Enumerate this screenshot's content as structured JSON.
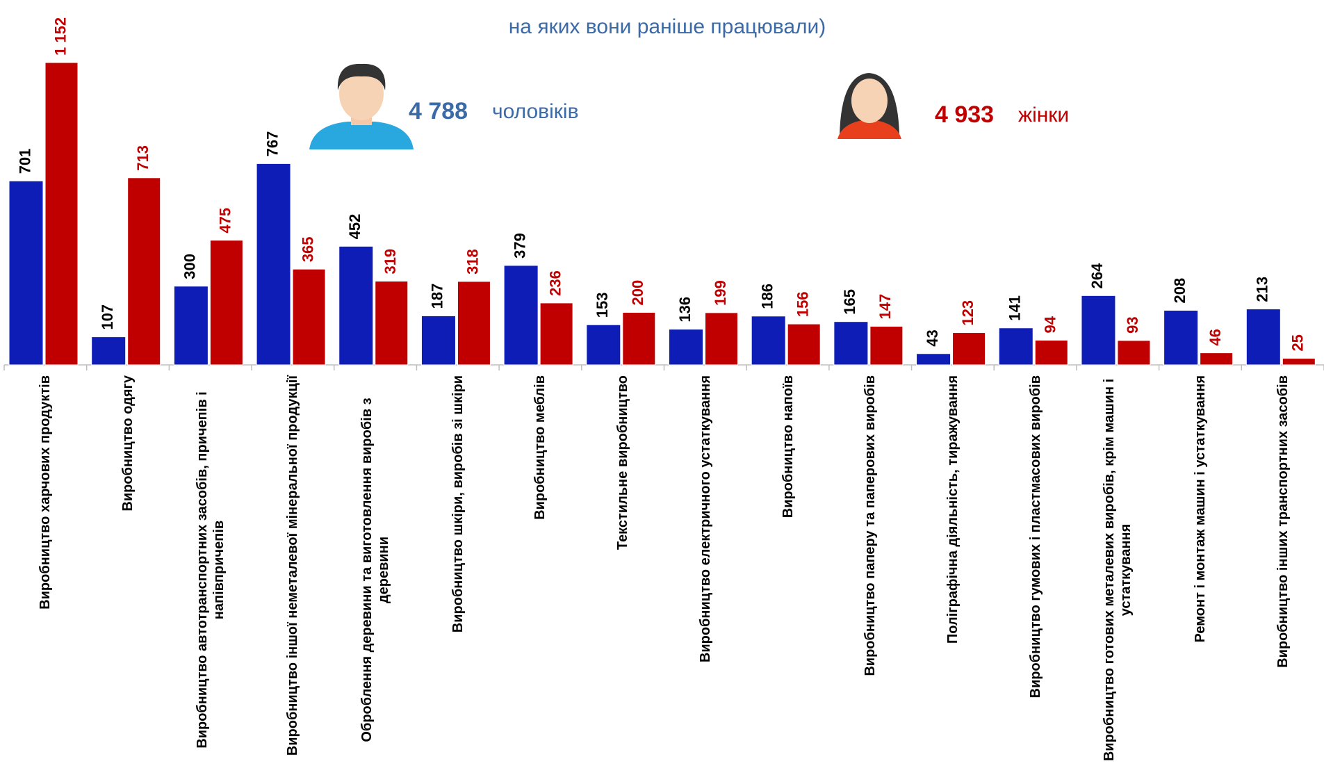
{
  "chart_data": {
    "type": "bar",
    "subtitle": "на яких вони раніше працювали)",
    "annotations": {
      "men_value": "4 788",
      "men_label": "чоловіків",
      "women_value": "4 933",
      "women_label": "жінки"
    },
    "categories": [
      "Виробництво харчових продуктів",
      "Виробництво одягу",
      "Виробництво автотранспортних засобів, причепів і напівпричепів",
      "Виробництво іншої неметалевої мінеральної продукції",
      "Оброблення деревини та виготовлення виробів з деревини",
      "Виробництво шкіри, виробів зі шкіри",
      "Виробництво меблів",
      "Текстильне виробництво",
      "Виробництво електричного устаткування",
      "Виробництво напоїв",
      "Виробництво паперу та паперових виробів",
      "Поліграфічна діяльність, тиражування",
      "Виробництво гумових і пластмасових виробів",
      "Виробництво готових металевих виробів, крім машин і устаткування",
      "Ремонт і монтаж машин і устаткування",
      "Виробництво інших транспортних засобів"
    ],
    "series": [
      {
        "color": "#0d1db5",
        "label_color": "#000000",
        "values": [
          701,
          107,
          300,
          767,
          452,
          187,
          379,
          153,
          136,
          186,
          165,
          43,
          141,
          264,
          208,
          213
        ]
      },
      {
        "color": "#c00000",
        "label_color": "#c00000",
        "values": [
          1152,
          713,
          475,
          365,
          319,
          318,
          236,
          200,
          199,
          156,
          147,
          123,
          94,
          93,
          46,
          25
        ],
        "value_labels": [
          "1 152",
          "713",
          "475",
          "365",
          "319",
          "318",
          "236",
          "200",
          "199",
          "156",
          "147",
          "123",
          "94",
          "93",
          "46",
          "25"
        ]
      }
    ]
  }
}
